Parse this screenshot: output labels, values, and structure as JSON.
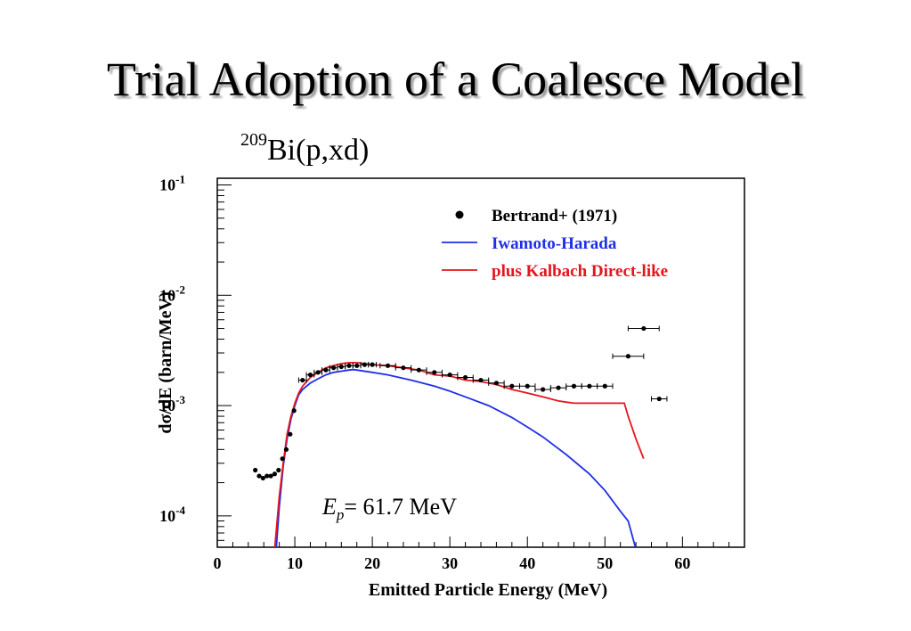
{
  "slide": {
    "title": "Trial Adoption of a Coalesce Model"
  },
  "chart_data": {
    "type": "scatter",
    "title_sup": "209",
    "title_main": "Bi(p,xd)",
    "xlabel": "Emitted Particle Energy (MeV)",
    "ylabel": "dσ/dE (barn/MeV)",
    "xlim": [
      0,
      68
    ],
    "ylim": [
      5.2e-05,
      0.115
    ],
    "yscale": "log",
    "grid": false,
    "legend_position": "top-right",
    "x_ticks": [
      "0",
      "10",
      "20",
      "30",
      "40",
      "50",
      "60"
    ],
    "y_tick_labels": [
      {
        "base": "10",
        "exp": "-1",
        "value": 0.1
      },
      {
        "base": "10",
        "exp": "-2",
        "value": 0.01
      },
      {
        "base": "10",
        "exp": "-3",
        "value": 0.001
      },
      {
        "base": "10",
        "exp": "-4",
        "value": 0.0001
      }
    ],
    "annotation": {
      "symbol": "E",
      "subscript": "p",
      "text": "= 61.7 MeV"
    },
    "series": [
      {
        "name": "Bertrand+ (1971)",
        "kind": "points",
        "color": "#000000",
        "x": [
          4.9,
          5.4,
          5.9,
          6.4,
          6.9,
          7.4,
          7.9,
          8.4,
          8.9,
          9.4,
          9.9,
          11,
          12,
          13,
          14,
          15,
          16,
          17,
          18,
          19,
          20,
          22,
          24,
          26,
          28,
          30,
          32,
          34,
          36,
          38,
          40,
          42,
          44,
          46,
          48,
          50,
          53,
          55,
          57
        ],
        "y": [
          0.00026,
          0.00023,
          0.00022,
          0.00023,
          0.00023,
          0.00024,
          0.00026,
          0.00033,
          0.0004,
          0.00055,
          0.0009,
          0.0017,
          0.0019,
          0.002,
          0.0021,
          0.0022,
          0.00225,
          0.0023,
          0.0023,
          0.00235,
          0.00235,
          0.0023,
          0.0022,
          0.0021,
          0.002,
          0.0019,
          0.0018,
          0.0017,
          0.0016,
          0.0015,
          0.0015,
          0.0014,
          0.00145,
          0.0015,
          0.0015,
          0.0015,
          0.0028,
          0.005,
          0.00115
        ],
        "xerr": [
          0,
          0,
          0,
          0,
          0,
          0,
          0,
          0,
          0,
          0,
          0,
          0.5,
          0.5,
          0.5,
          0.5,
          0.5,
          0.5,
          0.5,
          0.5,
          0.5,
          0.5,
          1,
          1,
          1,
          1,
          1,
          1,
          1,
          1,
          1,
          1,
          1,
          1,
          1,
          1,
          1,
          2,
          2,
          1
        ]
      },
      {
        "name": "Iwamoto-Harada",
        "kind": "line",
        "color": "#1f2fe6",
        "x": [
          7.6,
          8,
          8.5,
          9,
          9.5,
          10,
          10.5,
          11,
          12,
          13,
          14,
          15,
          16,
          17,
          17.5,
          18,
          20,
          22,
          25,
          28,
          30,
          32,
          35,
          38,
          40,
          42,
          45,
          48,
          50,
          52,
          53,
          54
        ],
        "y": [
          5e-05,
          0.00012,
          0.00028,
          0.0005,
          0.00075,
          0.001,
          0.00125,
          0.0014,
          0.0016,
          0.00175,
          0.0019,
          0.002,
          0.00205,
          0.0021,
          0.00212,
          0.0021,
          0.002,
          0.0019,
          0.0017,
          0.0015,
          0.00135,
          0.0012,
          0.001,
          0.00078,
          0.00064,
          0.00052,
          0.00036,
          0.00024,
          0.00017,
          0.00011,
          9e-05,
          5e-05
        ]
      },
      {
        "name": "plus Kalbach Direct-like",
        "kind": "line",
        "color": "#e6141e",
        "x": [
          7.4,
          8,
          8.5,
          9,
          9.5,
          10,
          10.5,
          11,
          12,
          13,
          14,
          15,
          16,
          17,
          18,
          19,
          20,
          22,
          24,
          26,
          28,
          30,
          32,
          34,
          36,
          38,
          40,
          42,
          44,
          46,
          48,
          50,
          52,
          52.5,
          53,
          54,
          55
        ],
        "y": [
          5e-05,
          0.00015,
          0.0003,
          0.00055,
          0.0008,
          0.00105,
          0.0013,
          0.0015,
          0.0018,
          0.002,
          0.0022,
          0.0023,
          0.0024,
          0.00245,
          0.00245,
          0.0024,
          0.00235,
          0.0023,
          0.0022,
          0.0021,
          0.0019,
          0.00185,
          0.0017,
          0.00165,
          0.00155,
          0.0014,
          0.0013,
          0.0012,
          0.0011,
          0.00105,
          0.00105,
          0.00105,
          0.00105,
          0.00105,
          0.0008,
          0.0005,
          0.00033
        ]
      }
    ]
  }
}
